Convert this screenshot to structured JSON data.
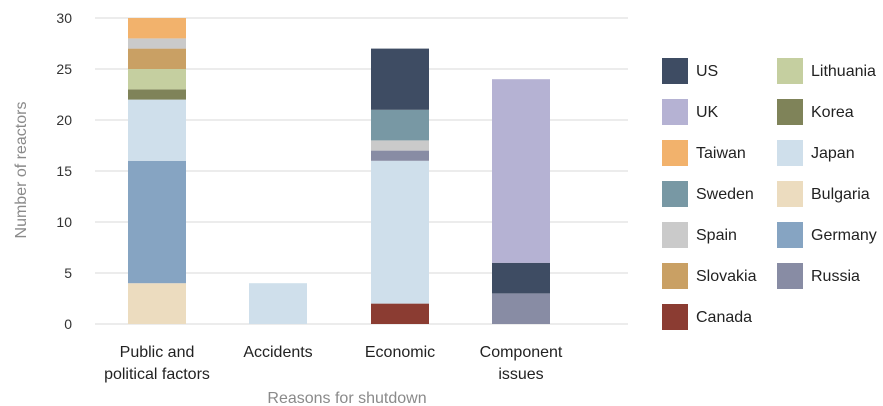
{
  "chart_data": {
    "type": "bar",
    "stacked": true,
    "title": "",
    "xlabel": "Reasons for shutdown",
    "ylabel": "Number of reactors",
    "ylim": [
      0,
      30
    ],
    "yticks": [
      0,
      5,
      10,
      15,
      20,
      25,
      30
    ],
    "grid": true,
    "legend_position": "right",
    "categories": [
      [
        "Public and",
        "political factors"
      ],
      [
        "Accidents"
      ],
      [
        "Economic"
      ],
      [
        "Component",
        "issues"
      ]
    ],
    "series": [
      {
        "name": "Bulgaria",
        "color": "#ecdcbf",
        "values": [
          4,
          0,
          0,
          0
        ]
      },
      {
        "name": "Germany",
        "color": "#86a4c2",
        "values": [
          12,
          0,
          0,
          0
        ]
      },
      {
        "name": "Japan",
        "color": "#cfdfeb",
        "values": [
          6,
          4,
          0,
          0
        ]
      },
      {
        "name": "Korea",
        "color": "#7f8359",
        "values": [
          1,
          0,
          0,
          0
        ]
      },
      {
        "name": "Lithuania",
        "color": "#c5cfa0",
        "values": [
          2,
          0,
          0,
          0
        ]
      },
      {
        "name": "Slovakia",
        "color": "#c9a064",
        "values": [
          2,
          0,
          0,
          0
        ]
      },
      {
        "name": "Spain",
        "color": "#cacaca",
        "values": [
          1,
          0,
          0,
          0
        ]
      },
      {
        "name": "Taiwan",
        "color": "#f2b26c",
        "values": [
          2,
          0,
          0,
          0
        ]
      },
      {
        "name": "Canada",
        "color": "#8b3c32",
        "values": [
          0,
          0,
          2,
          0
        ]
      },
      {
        "name": "Japan",
        "color": "#cfdfeb",
        "values": [
          0,
          0,
          14,
          0
        ]
      },
      {
        "name": "Russia",
        "color": "#888ca4",
        "values": [
          0,
          0,
          1,
          3
        ]
      },
      {
        "name": "Spain",
        "color": "#cacaca",
        "values": [
          0,
          0,
          1,
          0
        ]
      },
      {
        "name": "Sweden",
        "color": "#7898a4",
        "values": [
          0,
          0,
          3,
          0
        ]
      },
      {
        "name": "US",
        "color": "#3e4c63",
        "values": [
          0,
          0,
          6,
          3
        ]
      },
      {
        "name": "UK",
        "color": "#b5b2d3",
        "values": [
          0,
          0,
          0,
          18
        ]
      }
    ],
    "legend": [
      {
        "name": "US",
        "color": "#3e4c63"
      },
      {
        "name": "Lithuania",
        "color": "#c5cfa0"
      },
      {
        "name": "UK",
        "color": "#b5b2d3"
      },
      {
        "name": "Korea",
        "color": "#7f8359"
      },
      {
        "name": "Taiwan",
        "color": "#f2b26c"
      },
      {
        "name": "Japan",
        "color": "#cfdfeb"
      },
      {
        "name": "Sweden",
        "color": "#7898a4"
      },
      {
        "name": "Bulgaria",
        "color": "#ecdcbf"
      },
      {
        "name": "Spain",
        "color": "#cacaca"
      },
      {
        "name": "Germany",
        "color": "#86a4c2"
      },
      {
        "name": "Slovakia",
        "color": "#c9a064"
      },
      {
        "name": "Russia",
        "color": "#888ca4"
      },
      {
        "name": "Canada",
        "color": "#8b3c32"
      }
    ]
  }
}
